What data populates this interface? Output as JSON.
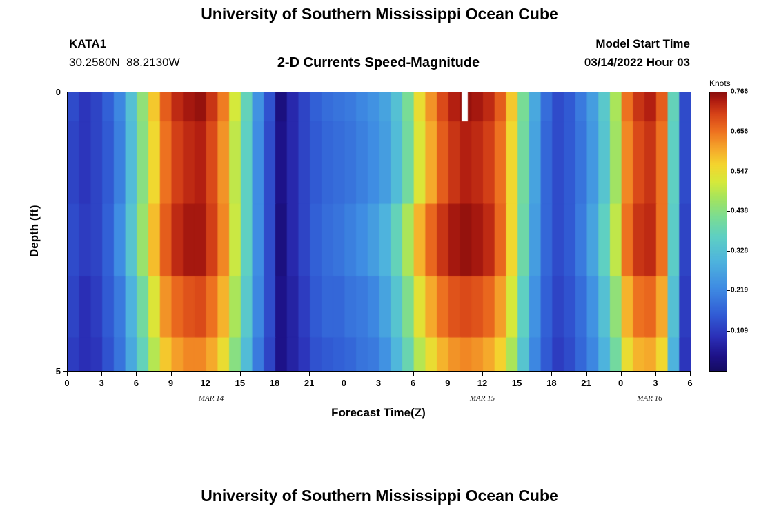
{
  "page": {
    "top_title": "University of Southern Mississippi Ocean Cube",
    "bottom_title": "University of Southern Mississippi Ocean Cube"
  },
  "header": {
    "station_id": "KATA1",
    "coordinates": "30.2580N  88.2130W",
    "plot_title": "2-D Currents Speed-Magnitude",
    "model_start_label": "Model Start Time",
    "model_start_value": "03/14/2022 Hour 03"
  },
  "chart_data": {
    "type": "heatmap",
    "title": "2-D Currents Speed-Magnitude",
    "xlabel": "Forecast Time(Z)",
    "ylabel": "Depth (ft)",
    "colorbar_label": "Knots",
    "x_range": [
      0,
      54
    ],
    "x_tick_hours": [
      0,
      3,
      6,
      9,
      12,
      15,
      18,
      21,
      24,
      27,
      30,
      33,
      36,
      39,
      42,
      45,
      48,
      51,
      54
    ],
    "x_tick_labels": [
      "0",
      "3",
      "6",
      "9",
      "12",
      "15",
      "18",
      "21",
      "0",
      "3",
      "6",
      "9",
      "12",
      "15",
      "18",
      "21",
      "0",
      "3",
      "6"
    ],
    "date_labels": [
      {
        "text": "MAR 14",
        "hour": 12.5
      },
      {
        "text": "MAR 15",
        "hour": 36
      },
      {
        "text": "MAR 16",
        "hour": 50.5
      }
    ],
    "depth_range": [
      0,
      5
    ],
    "y_tick_labels": [
      "0",
      "5"
    ],
    "vmin": 0,
    "vmax": 0.766,
    "colorbar_ticks": [
      0.766,
      0.656,
      0.547,
      0.438,
      0.328,
      0.219,
      0.109
    ],
    "legend_position": "right",
    "grid": "off",
    "colormap_stops": [
      [
        0.0,
        "#150c63"
      ],
      [
        0.05,
        "#1d1187"
      ],
      [
        0.12,
        "#2b2fb7"
      ],
      [
        0.2,
        "#315cd5"
      ],
      [
        0.3,
        "#3f8de3"
      ],
      [
        0.4,
        "#4fb6dc"
      ],
      [
        0.48,
        "#5ecfc4"
      ],
      [
        0.55,
        "#79dc95"
      ],
      [
        0.62,
        "#a5e45e"
      ],
      [
        0.68,
        "#d6e93a"
      ],
      [
        0.74,
        "#f4d52e"
      ],
      [
        0.8,
        "#f5a62b"
      ],
      [
        0.86,
        "#ee7220"
      ],
      [
        0.92,
        "#d84518"
      ],
      [
        0.97,
        "#b01c10"
      ],
      [
        1.0,
        "#8c0f0c"
      ]
    ],
    "depth_edges_ft": [
      0,
      0.52,
      2.0,
      3.3,
      4.4,
      5.0
    ],
    "hours_per_column": 1,
    "grid_knots_by_depth": [
      [
        0.13,
        0.1,
        0.12,
        0.16,
        0.22,
        0.33,
        0.45,
        0.58,
        0.68,
        0.73,
        0.75,
        0.76,
        0.72,
        0.65,
        0.52,
        0.38,
        0.24,
        0.14,
        0.03,
        0.08,
        0.12,
        0.16,
        0.18,
        0.19,
        0.2,
        0.22,
        0.24,
        0.27,
        0.33,
        0.42,
        0.55,
        0.63,
        0.7,
        0.74,
        0.76,
        0.75,
        0.73,
        0.68,
        0.58,
        0.42,
        0.28,
        0.18,
        0.13,
        0.15,
        0.2,
        0.26,
        0.35,
        0.48,
        0.66,
        0.72,
        0.74,
        0.68,
        0.38,
        0.13
      ],
      [
        0.12,
        0.1,
        0.12,
        0.15,
        0.21,
        0.32,
        0.44,
        0.56,
        0.66,
        0.71,
        0.73,
        0.74,
        0.7,
        0.63,
        0.5,
        0.37,
        0.23,
        0.13,
        0.04,
        0.08,
        0.12,
        0.15,
        0.17,
        0.18,
        0.19,
        0.21,
        0.23,
        0.26,
        0.32,
        0.41,
        0.53,
        0.61,
        0.68,
        0.72,
        0.74,
        0.73,
        0.71,
        0.66,
        0.56,
        0.41,
        0.27,
        0.17,
        0.13,
        0.15,
        0.19,
        0.25,
        0.34,
        0.47,
        0.64,
        0.7,
        0.72,
        0.66,
        0.37,
        0.13
      ],
      [
        0.13,
        0.11,
        0.12,
        0.16,
        0.23,
        0.34,
        0.46,
        0.59,
        0.68,
        0.73,
        0.75,
        0.75,
        0.71,
        0.64,
        0.51,
        0.37,
        0.23,
        0.13,
        0.03,
        0.08,
        0.12,
        0.16,
        0.18,
        0.19,
        0.21,
        0.23,
        0.26,
        0.3,
        0.38,
        0.48,
        0.6,
        0.67,
        0.72,
        0.75,
        0.76,
        0.75,
        0.73,
        0.67,
        0.56,
        0.4,
        0.26,
        0.17,
        0.13,
        0.15,
        0.2,
        0.27,
        0.37,
        0.5,
        0.66,
        0.72,
        0.73,
        0.66,
        0.36,
        0.12
      ],
      [
        0.12,
        0.09,
        0.11,
        0.15,
        0.2,
        0.3,
        0.41,
        0.53,
        0.63,
        0.67,
        0.69,
        0.7,
        0.66,
        0.6,
        0.48,
        0.35,
        0.22,
        0.13,
        0.04,
        0.07,
        0.11,
        0.15,
        0.17,
        0.17,
        0.19,
        0.2,
        0.22,
        0.27,
        0.34,
        0.43,
        0.54,
        0.61,
        0.66,
        0.69,
        0.7,
        0.69,
        0.67,
        0.62,
        0.52,
        0.37,
        0.24,
        0.16,
        0.12,
        0.14,
        0.18,
        0.24,
        0.33,
        0.45,
        0.6,
        0.66,
        0.67,
        0.61,
        0.33,
        0.11
      ],
      [
        0.11,
        0.09,
        0.1,
        0.14,
        0.19,
        0.28,
        0.38,
        0.49,
        0.58,
        0.62,
        0.64,
        0.64,
        0.61,
        0.55,
        0.44,
        0.32,
        0.2,
        0.12,
        0.04,
        0.07,
        0.1,
        0.14,
        0.15,
        0.16,
        0.17,
        0.19,
        0.2,
        0.24,
        0.31,
        0.39,
        0.49,
        0.55,
        0.6,
        0.63,
        0.64,
        0.63,
        0.61,
        0.57,
        0.48,
        0.34,
        0.22,
        0.15,
        0.11,
        0.13,
        0.17,
        0.22,
        0.3,
        0.41,
        0.55,
        0.6,
        0.61,
        0.56,
        0.3,
        0.1
      ]
    ],
    "missing_data": {
      "hour_start": 34.15,
      "hour_end": 34.68,
      "depth_start_ft": 0,
      "depth_end_ft": 0.52,
      "color": "#ffffff"
    }
  }
}
